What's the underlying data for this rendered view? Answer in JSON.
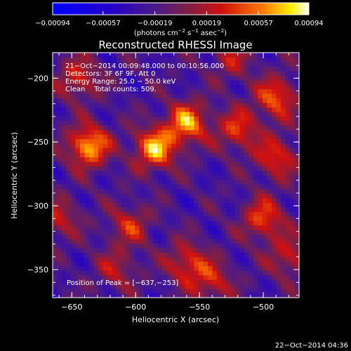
{
  "chart_data": {
    "type": "heatmap",
    "title": "Reconstructed RHESSI Image",
    "xlabel": "Heliocentric X (arcsec)",
    "ylabel": "Heliocentric Y (arcsec)",
    "xlim": [
      -665,
      -472
    ],
    "ylim": [
      -372,
      -180
    ],
    "x_ticks": [
      -650,
      -600,
      -550,
      -500
    ],
    "y_ticks": [
      -200,
      -250,
      -300,
      -350
    ],
    "x_tick_labels": [
      "−650",
      "−600",
      "−550",
      "−500"
    ],
    "y_tick_labels": [
      "−200",
      "−250",
      "−300",
      "−350"
    ],
    "colorbar": {
      "vmin": -0.00094,
      "vmax": 0.00094,
      "ticks": [
        -0.00094,
        -0.00057,
        -0.00019,
        0.00019,
        0.00057,
        0.00094
      ],
      "tick_labels": [
        "−0.00094",
        "−0.00057",
        "−0.00019",
        "0.00019",
        "0.00057",
        "0.00094"
      ],
      "units_main": "(photons cm",
      "units_sup1": "−2",
      "units_mid": " s",
      "units_sup2": "−1",
      "units_mid2": " asec",
      "units_sup3": "−2",
      "units_end": ")"
    },
    "annotations": [
      "21−Oct−2014 00:09:48.000 to 00:10:56.000",
      "Detectors: 3F 6F 9F, Att 0",
      "Energy Range: 25.0 − 50.0 keV",
      "Clean    Total counts: 509."
    ],
    "peak_label": "Position of Peak = [−637,−253]",
    "peak": [
      -637,
      -253
    ],
    "sources": [
      {
        "x": -637,
        "y": -253,
        "amp": 0.00094
      },
      {
        "x": -585,
        "y": -255,
        "amp": 0.00092
      },
      {
        "x": -560,
        "y": -235,
        "amp": 0.00085
      },
      {
        "x": -520,
        "y": -240,
        "amp": 0.0006
      },
      {
        "x": -490,
        "y": -215,
        "amp": 0.0007
      },
      {
        "x": -490,
        "y": -262,
        "amp": 0.0006
      },
      {
        "x": -500,
        "y": -310,
        "amp": 0.00065
      },
      {
        "x": -480,
        "y": -340,
        "amp": 0.0005
      },
      {
        "x": -560,
        "y": -345,
        "amp": 0.0006
      },
      {
        "x": -540,
        "y": -360,
        "amp": 0.0005
      },
      {
        "x": -605,
        "y": -315,
        "amp": 0.0005
      },
      {
        "x": -645,
        "y": -200,
        "amp": 0.00055
      },
      {
        "x": -660,
        "y": -310,
        "amp": 0.00045
      },
      {
        "x": -525,
        "y": -185,
        "amp": 0.0004
      },
      {
        "x": -615,
        "y": -350,
        "amp": 0.0004
      }
    ]
  },
  "footer": {
    "timestamp": "22−Oct−2014 04:36"
  }
}
